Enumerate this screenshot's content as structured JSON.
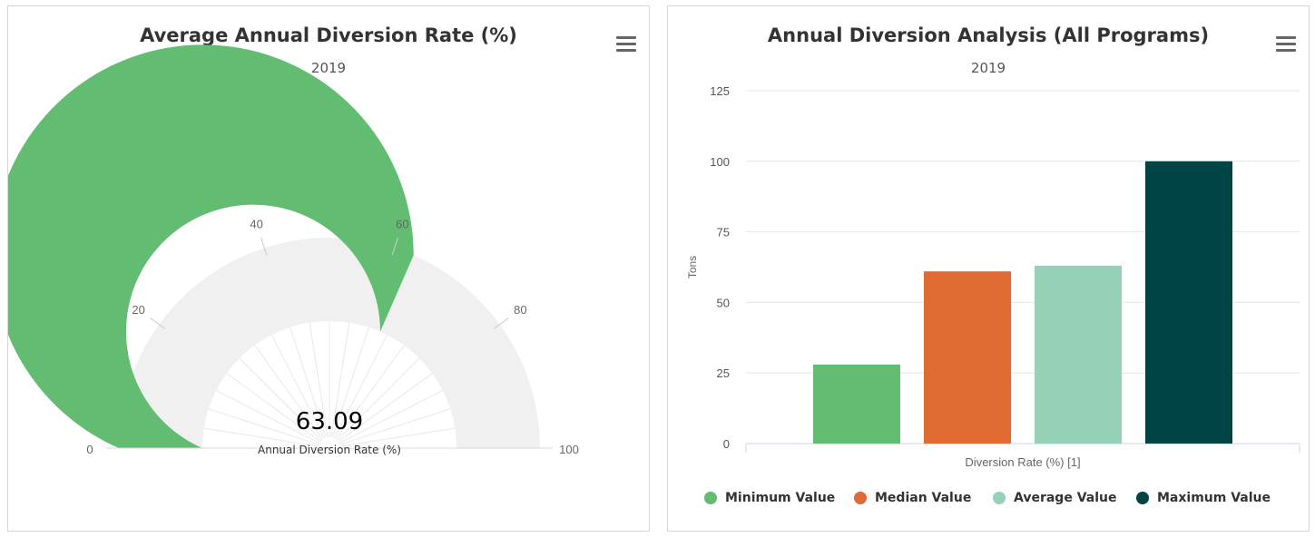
{
  "gauge_panel": {
    "title": "Average Annual Diversion Rate (%)",
    "subtitle": "2019",
    "menu_icon": "hamburger-menu-icon"
  },
  "bar_panel": {
    "title": "Annual Diversion Analysis (All Programs)",
    "subtitle": "2019",
    "menu_icon": "hamburger-menu-icon"
  },
  "chart_data": [
    {
      "type": "gauge",
      "value": 63.09,
      "value_label": "63.09",
      "series_label": "Annual Diversion Rate (%)",
      "min": 0,
      "max": 100,
      "tick_labels": [
        "0",
        "20",
        "40",
        "60",
        "80",
        "100"
      ],
      "tick_values": [
        0,
        20,
        40,
        60,
        80,
        100
      ],
      "colors": {
        "fill": "#62bd72",
        "background": "#f0f0f0"
      }
    },
    {
      "type": "bar",
      "categories": [
        "Diversion Rate (%) [1]"
      ],
      "xlabel": "Diversion Rate (%) [1]",
      "ylabel": "Tons",
      "ylim": [
        0,
        125
      ],
      "y_ticks": [
        0,
        25,
        50,
        75,
        100,
        125
      ],
      "grid": true,
      "legend_position": "bottom",
      "series": [
        {
          "name": "Minimum Value",
          "values": [
            28
          ],
          "color": "#62bd72"
        },
        {
          "name": "Median Value",
          "values": [
            61
          ],
          "color": "#df6a32"
        },
        {
          "name": "Average Value",
          "values": [
            63
          ],
          "color": "#95d1b6"
        },
        {
          "name": "Maximum Value",
          "values": [
            100
          ],
          "color": "#004445"
        }
      ]
    }
  ]
}
